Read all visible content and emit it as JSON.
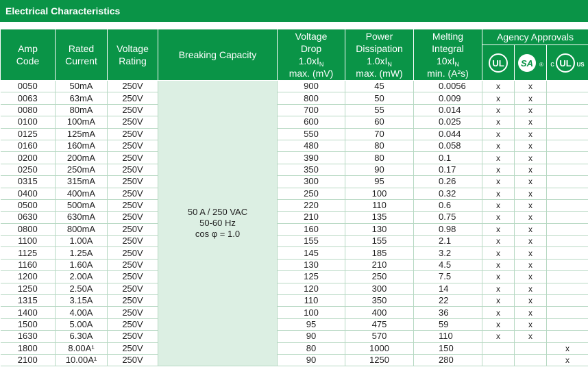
{
  "title": "Electrical Characteristics",
  "header": {
    "columns": [
      {
        "lines": [
          "Amp",
          "Code"
        ]
      },
      {
        "lines": [
          "Rated",
          "Current"
        ]
      },
      {
        "lines": [
          "Voltage",
          "Rating"
        ]
      },
      {
        "lines": [
          "Breaking Capacity"
        ]
      },
      {
        "lines": [
          "Voltage",
          "Drop",
          [
            "1.0xI",
            "N"
          ],
          "max. (mV)"
        ]
      },
      {
        "lines": [
          "Power",
          "Dissipation",
          [
            "1.0xI",
            "N"
          ],
          "max. (mW)"
        ]
      },
      {
        "lines": [
          "Melting",
          "Integral",
          [
            "10xI",
            "N"
          ],
          "min. (A²s)"
        ]
      }
    ],
    "agency": "Agency Approvals",
    "logos": [
      [
        "UL"
      ],
      [
        "SA",
        "®"
      ],
      [
        "c",
        "UL",
        "US"
      ]
    ]
  },
  "breaking_capacity": [
    "50 A / 250 VAC",
    "50-60 Hz",
    "cos φ = 1.0"
  ],
  "table": {
    "rows": [
      [
        "0050",
        "50mA",
        "250V",
        "900",
        "45",
        "0.0056",
        "x",
        "x",
        null
      ],
      [
        "0063",
        "63mA",
        "250V",
        "800",
        "50",
        "0.009",
        "x",
        "x",
        null
      ],
      [
        "0080",
        "80mA",
        "250V",
        "700",
        "55",
        "0.014",
        "x",
        "x",
        null
      ],
      [
        "0100",
        "100mA",
        "250V",
        "600",
        "60",
        "0.025",
        "x",
        "x",
        null
      ],
      [
        "0125",
        "125mA",
        "250V",
        "550",
        "70",
        "0.044",
        "x",
        "x",
        null
      ],
      [
        "0160",
        "160mA",
        "250V",
        "480",
        "80",
        "0.058",
        "x",
        "x",
        null
      ],
      [
        "0200",
        "200mA",
        "250V",
        "390",
        "80",
        "0.1",
        "x",
        "x",
        null
      ],
      [
        "0250",
        "250mA",
        "250V",
        "350",
        "90",
        "0.17",
        "x",
        "x",
        null
      ],
      [
        "0315",
        "315mA",
        "250V",
        "300",
        "95",
        "0.26",
        "x",
        "x",
        null
      ],
      [
        "0400",
        "400mA",
        "250V",
        "250",
        "100",
        "0.32",
        "x",
        "x",
        null
      ],
      [
        "0500",
        "500mA",
        "250V",
        "220",
        "110",
        "0.6",
        "x",
        "x",
        null
      ],
      [
        "0630",
        "630mA",
        "250V",
        "210",
        "135",
        "0.75",
        "x",
        "x",
        null
      ],
      [
        "0800",
        "800mA",
        "250V",
        "160",
        "130",
        "0.98",
        "x",
        "x",
        null
      ],
      [
        "1100",
        "1.00A",
        "250V",
        "155",
        "155",
        "2.1",
        "x",
        "x",
        null
      ],
      [
        "1125",
        "1.25A",
        "250V",
        "145",
        "185",
        "3.2",
        "x",
        "x",
        null
      ],
      [
        "1160",
        "1.60A",
        "250V",
        "130",
        "210",
        "4.5",
        "x",
        "x",
        null
      ],
      [
        "1200",
        "2.00A",
        "250V",
        "125",
        "250",
        "7.5",
        "x",
        "x",
        null
      ],
      [
        "1250",
        "2.50A",
        "250V",
        "120",
        "300",
        "14",
        "x",
        "x",
        null
      ],
      [
        "1315",
        "3.15A",
        "250V",
        "110",
        "350",
        "22",
        "x",
        "x",
        null
      ],
      [
        "1400",
        "4.00A",
        "250V",
        "100",
        "400",
        "36",
        "x",
        "x",
        null
      ],
      [
        "1500",
        "5.00A",
        "250V",
        "95",
        "475",
        "59",
        "x",
        "x",
        null
      ],
      [
        "1630",
        "6.30A",
        "250V",
        "90",
        "570",
        "110",
        "x",
        "x",
        null
      ],
      [
        "1800",
        "8.00A¹",
        "250V",
        "80",
        "1000",
        "150",
        null,
        null,
        "x"
      ],
      [
        "2100",
        "10.00A¹",
        "250V",
        "90",
        "1250",
        "280",
        null,
        null,
        "x"
      ]
    ]
  }
}
